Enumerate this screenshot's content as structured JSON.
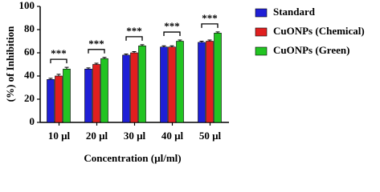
{
  "chart_data": {
    "type": "bar",
    "x_label": "Concentration (µl/ml)",
    "y_label": "(%) of Inhibition",
    "categories": [
      "10 µl",
      "20 µl",
      "30 µl",
      "40 µl",
      "50 µl"
    ],
    "series": [
      {
        "name": "Standard",
        "color": "#1f1fd6",
        "values": [
          37,
          46,
          58,
          65,
          69
        ],
        "errors": [
          1,
          1,
          1,
          1,
          1
        ]
      },
      {
        "name": "CuONPs (Chemical)",
        "color": "#e01f1f",
        "values": [
          40,
          50,
          60,
          65,
          70
        ],
        "errors": [
          1.5,
          1,
          1,
          1,
          1
        ]
      },
      {
        "name": "CuONPs (Green)",
        "color": "#22c422",
        "values": [
          46,
          55,
          66,
          70,
          77
        ],
        "errors": [
          1.5,
          1,
          1,
          1,
          1
        ]
      }
    ],
    "annotations": [
      "***",
      "***",
      "***",
      "***",
      "***"
    ],
    "ylim": [
      0,
      100
    ],
    "yticks": [
      0,
      20,
      40,
      60,
      80,
      100
    ],
    "grid": false
  }
}
